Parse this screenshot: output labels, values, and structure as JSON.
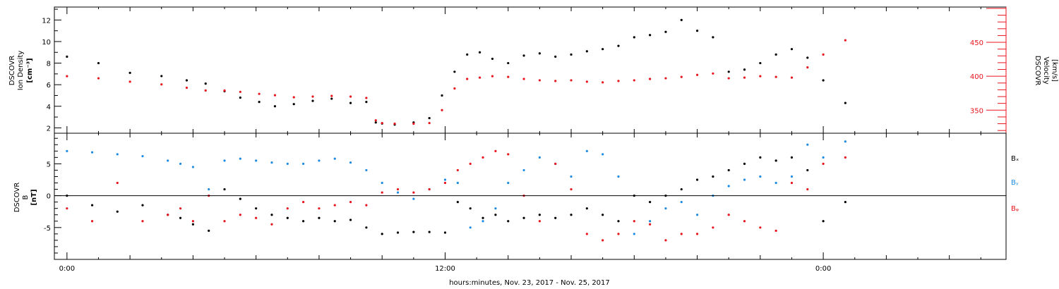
{
  "chart_data": [
    {
      "type": "scatter",
      "panel": "top",
      "ylabel_left": [
        "DSCOVR",
        "Ion Density",
        "[cm⁻³]"
      ],
      "ylabel_right": [
        "DSCOVR",
        "Velocity",
        "[km/s]"
      ],
      "ylim_left": [
        1.5,
        13.2
      ],
      "yticks_left": [
        "2",
        "4",
        "6",
        "8",
        "10",
        "12"
      ],
      "ylim_right": [
        316,
        502
      ],
      "yticks_right": [
        "350",
        "400",
        "450"
      ],
      "series": [
        {
          "color": "#000000",
          "axis": "left",
          "x": [
            0,
            1,
            2,
            3,
            3.8,
            4.4,
            5,
            5.5,
            6.1,
            6.6,
            7.2,
            7.8,
            8.4,
            9,
            9.5,
            9.8,
            10,
            10.4,
            11,
            11.5,
            11.9,
            12.3,
            12.7,
            13.1,
            13.5,
            14,
            14.5,
            15,
            15.5,
            16,
            16.5,
            17,
            17.5,
            18,
            18.5,
            19,
            19.5,
            20,
            20.5,
            21,
            21.5,
            22,
            22.5,
            23,
            23.5,
            24,
            24.7
          ],
          "y": [
            8.6,
            8.0,
            7.1,
            6.8,
            6.4,
            6.1,
            5.4,
            4.8,
            4.4,
            4.0,
            4.2,
            4.5,
            4.7,
            4.3,
            4.4,
            2.5,
            2.4,
            2.3,
            2.5,
            2.9,
            5.0,
            7.2,
            8.8,
            9.0,
            8.4,
            8.0,
            8.7,
            8.9,
            8.6,
            8.8,
            9.1,
            9.3,
            9.6,
            10.4,
            10.6,
            10.9,
            12.0,
            11.0,
            10.4,
            7.2,
            7.4,
            8.0,
            8.8,
            9.3,
            8.5,
            6.4,
            4.3
          ]
        },
        {
          "color": "#e8141e",
          "axis": "right",
          "x": [
            0,
            1,
            2,
            3,
            3.8,
            4.4,
            5,
            5.5,
            6.1,
            6.6,
            7.2,
            7.8,
            8.4,
            9,
            9.5,
            9.8,
            10,
            10.4,
            11,
            11.5,
            11.9,
            12.3,
            12.7,
            13.1,
            13.5,
            14,
            14.5,
            15,
            15.5,
            16,
            16.5,
            17,
            17.5,
            18,
            18.5,
            19,
            19.5,
            20,
            20.5,
            21,
            21.5,
            22,
            22.5,
            23,
            23.5,
            24,
            24.7
          ],
          "y": [
            400,
            397,
            392,
            388,
            383,
            379,
            379,
            377,
            374,
            372,
            369,
            370,
            371,
            370,
            368,
            335,
            331,
            330,
            330,
            331,
            350,
            382,
            396,
            398,
            400,
            399,
            396,
            394,
            393,
            394,
            392,
            391,
            393,
            394,
            396,
            397,
            399,
            402,
            404,
            397,
            398,
            400,
            399,
            398,
            413,
            432,
            453
          ]
        }
      ]
    },
    {
      "type": "scatter",
      "panel": "bottom",
      "ylabel": [
        "DSCOVR",
        "B",
        "[nT]"
      ],
      "ylim": [
        -10,
        9.8
      ],
      "yticks": [
        "-5",
        "0",
        "5"
      ],
      "zero_line": true,
      "xlim": [
        -0.4,
        29.8
      ],
      "xticks": [
        "0:00",
        "12:00",
        "0:00"
      ],
      "xtick_values": [
        0,
        12,
        24
      ],
      "xlabel": "hours:minutes, Nov. 23, 2017 - Nov. 25, 2017",
      "legend": [
        "Bₓ",
        "Bᵧ",
        "Bᵩ"
      ],
      "series": [
        {
          "name": "Bx",
          "color": "#000000",
          "x": [
            0,
            0.8,
            1.6,
            2.4,
            3.2,
            3.6,
            4,
            4.5,
            5,
            5.5,
            6,
            6.5,
            7,
            7.5,
            8,
            8.5,
            9,
            9.5,
            10,
            10.5,
            11,
            11.5,
            12,
            12.4,
            12.8,
            13.2,
            13.6,
            14,
            14.5,
            15,
            15.5,
            16,
            16.5,
            17,
            17.5,
            18,
            18.5,
            19,
            19.5,
            20,
            20.5,
            21,
            21.5,
            22,
            22.5,
            23,
            23.5,
            24,
            24.7
          ],
          "y": [
            0,
            -1.5,
            -2.5,
            -1.5,
            -3,
            -3.5,
            -4.5,
            -5.5,
            1,
            -0.5,
            -2,
            -3,
            -3.5,
            -4,
            -3.5,
            -4,
            -3.8,
            -5,
            -6,
            -5.8,
            -5.7,
            -5.7,
            -5.8,
            -1,
            -2,
            -3.5,
            -3,
            -4,
            -3.5,
            -3,
            -3.5,
            -3,
            -2,
            -3,
            -4,
            0,
            -1,
            0,
            1,
            2.5,
            3,
            4,
            5,
            6,
            5.5,
            6,
            4,
            -4,
            -1
          ]
        },
        {
          "name": "By",
          "color": "#1e8ce0",
          "x": [
            0,
            0.8,
            1.6,
            2.4,
            3.2,
            3.6,
            4,
            4.5,
            5,
            5.5,
            6,
            6.5,
            7,
            7.5,
            8,
            8.5,
            9,
            9.5,
            10,
            10.5,
            11,
            11.5,
            12,
            12.4,
            12.8,
            13.2,
            13.6,
            14,
            14.5,
            15,
            15.5,
            16,
            16.5,
            17,
            17.5,
            18,
            18.5,
            19,
            19.5,
            20,
            20.5,
            21,
            21.5,
            22,
            22.5,
            23,
            23.5,
            24,
            24.7
          ],
          "y": [
            7,
            6.8,
            6.5,
            6.2,
            5.5,
            5,
            4.5,
            1,
            5.5,
            5.8,
            5.5,
            5.2,
            5,
            5,
            5.5,
            5.8,
            5.2,
            4,
            2,
            0.5,
            -0.5,
            1,
            2.5,
            2,
            -5,
            -4,
            -2,
            2,
            4,
            6,
            5,
            3,
            7,
            6.5,
            3,
            -6,
            -4,
            -2,
            -1,
            -3,
            0,
            1.5,
            2.5,
            3,
            2,
            3,
            8,
            6,
            8.5
          ]
        },
        {
          "name": "Bz",
          "color": "#e8141e",
          "x": [
            0,
            0.8,
            1.6,
            2.4,
            3.2,
            3.6,
            4,
            4.5,
            5,
            5.5,
            6,
            6.5,
            7,
            7.5,
            8,
            8.5,
            9,
            9.5,
            10,
            10.5,
            11,
            11.5,
            12,
            12.4,
            12.8,
            13.2,
            13.6,
            14,
            14.5,
            15,
            15.5,
            16,
            16.5,
            17,
            17.5,
            18,
            18.5,
            19,
            19.5,
            20,
            20.5,
            21,
            21.5,
            22,
            22.5,
            23,
            23.5,
            24,
            24.7
          ],
          "y": [
            -2,
            -4,
            2,
            -4,
            -3,
            -2,
            -4,
            0,
            -4,
            -3,
            -3.5,
            -4.5,
            -2,
            -1,
            -2,
            -1.5,
            -1,
            -1.5,
            0.5,
            1,
            0.5,
            1,
            2,
            4,
            5,
            6,
            7,
            6.5,
            0,
            -4,
            5,
            1,
            -6,
            -7,
            -6,
            -4,
            -4.5,
            -7,
            -6,
            -6,
            -5,
            -3,
            -4,
            -5,
            -5.5,
            2,
            1,
            5,
            6
          ]
        }
      ]
    }
  ]
}
